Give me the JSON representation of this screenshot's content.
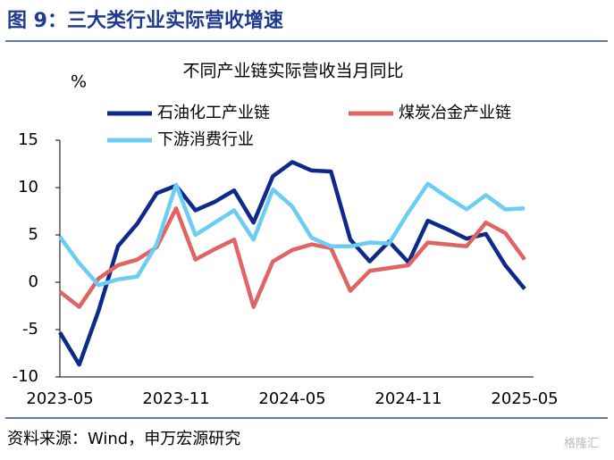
{
  "header": "图 9：三大类行业实际营收增速",
  "chart_data": {
    "type": "line",
    "title": "不同产业链实际营收当月同比",
    "ylabel": "%",
    "categories": [
      "2023-05",
      null,
      null,
      null,
      null,
      null,
      "2023-11",
      null,
      null,
      null,
      null,
      null,
      "2024-05",
      null,
      null,
      null,
      null,
      null,
      "2024-11",
      null,
      null,
      null,
      null,
      null,
      "2025-05"
    ],
    "series": [
      {
        "name": "石油化工产业链",
        "color": "#0d2a8a",
        "values": [
          -5.3,
          -8.7,
          -3.0,
          3.8,
          6.2,
          9.4,
          10.2,
          7.6,
          8.5,
          9.7,
          6.3,
          11.2,
          12.7,
          11.8,
          11.7,
          4.5,
          2.2,
          4.3,
          2.1,
          6.5,
          5.6,
          4.6,
          5.1,
          1.8,
          -0.7
        ]
      },
      {
        "name": "煤炭冶金产业链",
        "color": "#e06464",
        "values": [
          -1.0,
          -2.6,
          0.4,
          1.8,
          2.4,
          3.7,
          7.8,
          2.4,
          3.5,
          4.5,
          -2.6,
          2.2,
          3.4,
          4.0,
          3.6,
          -0.9,
          1.2,
          1.5,
          1.8,
          4.2,
          4.0,
          3.8,
          6.3,
          5.2,
          2.4
        ]
      },
      {
        "name": "下游消费行业",
        "color": "#6ccdf4",
        "values": [
          4.8,
          2.0,
          -0.3,
          0.3,
          0.6,
          4.0,
          10.3,
          5.0,
          6.3,
          7.6,
          4.5,
          9.8,
          8.0,
          4.7,
          3.8,
          3.8,
          4.2,
          4.1,
          7.4,
          10.4,
          9.0,
          7.7,
          9.2,
          7.7,
          7.8
        ]
      }
    ],
    "ylim": [
      -10,
      15
    ],
    "yticks": [
      -10,
      -5,
      0,
      5,
      10,
      15
    ]
  },
  "source": "资料来源：Wind，申万宏源研究",
  "watermark": "格隆汇"
}
